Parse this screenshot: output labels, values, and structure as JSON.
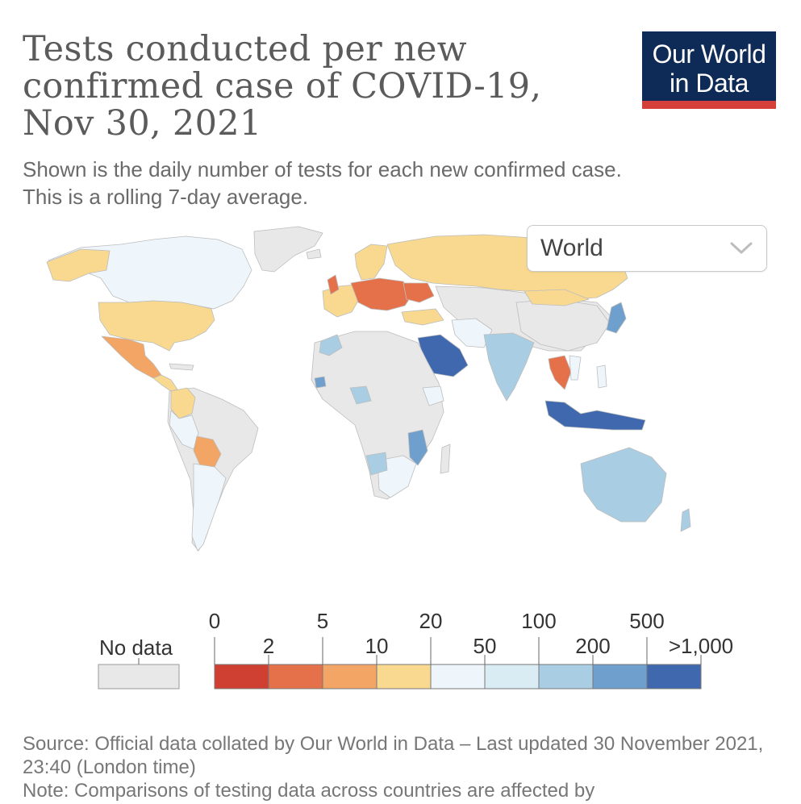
{
  "header": {
    "title": "Tests conducted per new confirmed case of COVID-19, Nov 30, 2021",
    "subtitle_line1": "Shown is the daily number of tests for each new confirmed case.",
    "subtitle_line2": "This is a rolling 7-day average.",
    "logo_line1": "Our World",
    "logo_line2": "in Data"
  },
  "controls": {
    "region_value": "World"
  },
  "legend": {
    "no_data_label": "No data",
    "upper_ticks": [
      "0",
      "5",
      "20",
      "100",
      "500"
    ],
    "lower_ticks": [
      "2",
      "10",
      "50",
      "200",
      ">1,000"
    ],
    "colors": [
      "#cf3f32",
      "#e5714a",
      "#f2a564",
      "#f8d98f",
      "#eef6fb",
      "#d9ecf4",
      "#a9cde3",
      "#6f9fcc",
      "#3f68ae"
    ],
    "no_data_color": "#e8e8e8"
  },
  "map": {
    "regions": [
      {
        "name": "North America",
        "color": "#eef6fb"
      },
      {
        "name": "United States",
        "color": "#f8d98f"
      },
      {
        "name": "Mexico",
        "color": "#f2a564"
      },
      {
        "name": "South America",
        "color": "#e8e8e8"
      },
      {
        "name": "Europe",
        "color": "#e5714a"
      },
      {
        "name": "Russia",
        "color": "#f8d98f"
      },
      {
        "name": "Africa",
        "color": "#e8e8e8"
      },
      {
        "name": "Saudi Arabia",
        "color": "#3f68ae"
      },
      {
        "name": "India",
        "color": "#a9cde3"
      },
      {
        "name": "Indonesia",
        "color": "#3f68ae"
      },
      {
        "name": "Australia",
        "color": "#a9cde3"
      },
      {
        "name": "Bolivia",
        "color": "#f2a564"
      }
    ]
  },
  "footer": {
    "source": "Source: Official data collated by Our World in Data – Last updated 30 November 2021, 23:40 (London time)",
    "note": "Note: Comparisons of testing data across countries are affected by"
  }
}
